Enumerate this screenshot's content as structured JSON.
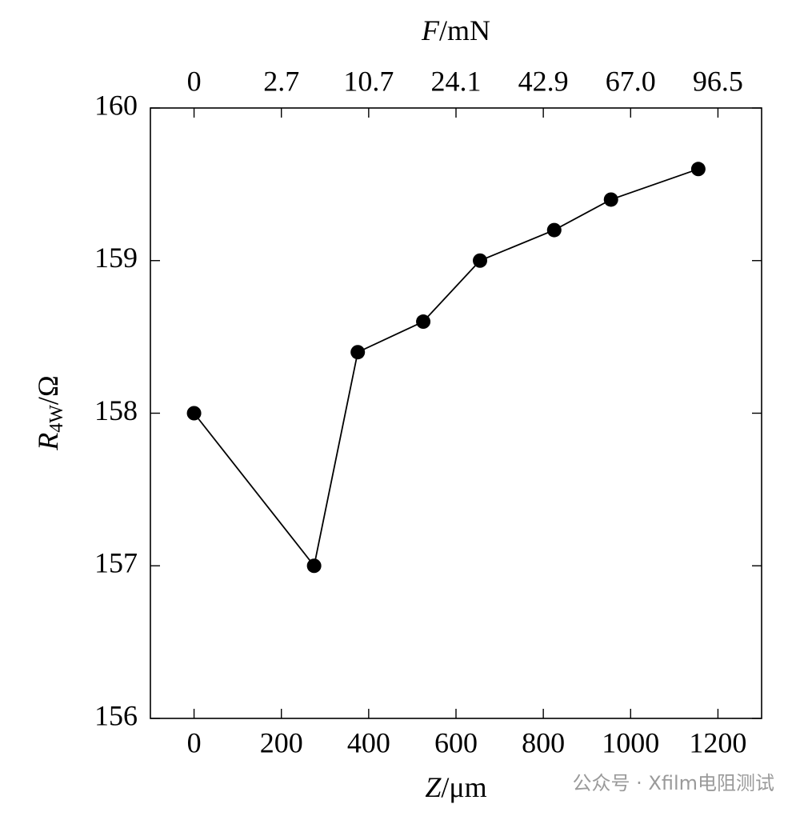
{
  "chart_data": {
    "type": "line",
    "x_label": {
      "symbol": "Z",
      "unit": "/μm"
    },
    "x2_label": {
      "symbol": "F",
      "unit": "/mN"
    },
    "y_label": {
      "symbol": "R",
      "subscript": "4W",
      "unit": "/Ω"
    },
    "x": [
      0,
      275,
      375,
      525,
      655,
      825,
      955,
      1155
    ],
    "values": [
      158.0,
      157.0,
      158.4,
      158.6,
      159.0,
      159.2,
      159.4,
      159.6
    ],
    "color": "#000000",
    "xlim": [
      -100,
      1300
    ],
    "xticks": [
      0,
      200,
      400,
      600,
      800,
      1000,
      1200
    ],
    "x2ticks": [
      {
        "value": 0,
        "label": "0"
      },
      {
        "value": 200,
        "label": "2.7"
      },
      {
        "value": 400,
        "label": "10.7"
      },
      {
        "value": 600,
        "label": "24.1"
      },
      {
        "value": 800,
        "label": "42.9"
      },
      {
        "value": 1000,
        "label": "67.0"
      },
      {
        "value": 1200,
        "label": "96.5"
      }
    ],
    "ylim": [
      156,
      160
    ],
    "yticks": [
      156,
      157,
      158,
      159,
      160
    ],
    "grid": false,
    "watermark": "公众号 · Xfilm电阻测试"
  }
}
